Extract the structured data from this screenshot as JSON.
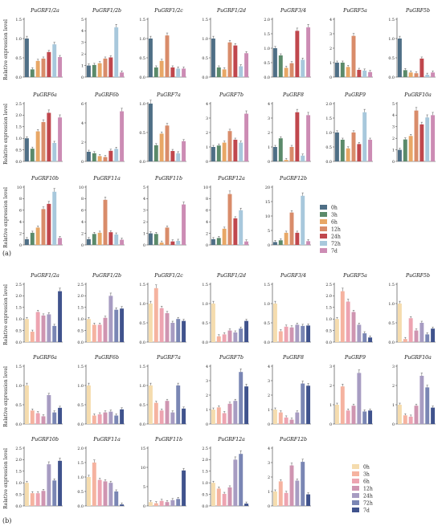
{
  "ylabel": "Relative expression level",
  "panel_labels": [
    "(a)",
    "(b)"
  ],
  "chart_data": [
    {
      "panel": "(a)",
      "type": "bar",
      "categories": [
        "0h",
        "3h",
        "6h",
        "12h",
        "24h",
        "72h",
        "7d"
      ],
      "legend": [
        "0h",
        "3h",
        "6h",
        "12h",
        "24h",
        "72h",
        "7d"
      ],
      "colors": [
        "#4f6f86",
        "#5b8a6a",
        "#e8a766",
        "#d98c6a",
        "#c0474d",
        "#a8c8dc",
        "#cc8cb4"
      ],
      "ylabel": "Relative expression level",
      "rows": [
        [
          {
            "name": "PuGRF1/2a",
            "ymax": 1.5,
            "ticks": [
              "0.0",
              "0.5",
              "1.0",
              "1.5"
            ],
            "values": [
              1.0,
              0.2,
              0.42,
              0.48,
              0.65,
              0.85,
              0.52
            ]
          },
          {
            "name": "PuGRF1/2b",
            "ymax": 5,
            "ticks": [
              "0",
              "1",
              "2",
              "3",
              "4",
              "5"
            ],
            "values": [
              1.0,
              1.05,
              1.2,
              1.6,
              1.7,
              4.3,
              0.4
            ]
          },
          {
            "name": "PuGRF1/2c",
            "ymax": 1.5,
            "ticks": [
              "0.0",
              "0.5",
              "1.0",
              "1.5"
            ],
            "values": [
              1.0,
              0.25,
              0.42,
              1.08,
              0.25,
              0.22,
              0.22
            ]
          },
          {
            "name": "PuGRF1/2d",
            "ymax": 1.5,
            "ticks": [
              "0.0",
              "0.5",
              "1.0",
              "1.5"
            ],
            "values": [
              1.0,
              0.25,
              0.2,
              0.9,
              0.82,
              0.28,
              0.62
            ]
          },
          {
            "name": "PuGRF3/4",
            "ymax": 2.0,
            "ticks": [
              "0.0",
              "0.5",
              "1.0",
              "1.5",
              "2.0"
            ],
            "values": [
              1.0,
              0.75,
              0.32,
              0.48,
              1.6,
              0.6,
              1.72
            ]
          },
          {
            "name": "PuGRF5a",
            "ymax": 4,
            "ticks": [
              "0",
              "1",
              "2",
              "3",
              "4"
            ],
            "values": [
              1.0,
              1.0,
              0.7,
              2.85,
              0.5,
              0.45,
              0.35
            ]
          },
          {
            "name": "PuGRF5b",
            "ymax": 1.5,
            "ticks": [
              "0.0",
              "0.5",
              "1.0",
              "1.5"
            ],
            "values": [
              1.0,
              0.18,
              0.12,
              0.1,
              0.48,
              0.06,
              0.12
            ]
          }
        ],
        [
          {
            "name": "PuGRF6a",
            "ymax": 2.5,
            "ticks": [
              "0.0",
              "0.5",
              "1.0",
              "1.5",
              "2.0",
              "2.5"
            ],
            "values": [
              1.0,
              0.55,
              1.3,
              1.7,
              2.1,
              0.8,
              1.9
            ]
          },
          {
            "name": "PuGRF6b",
            "ymax": 6,
            "ticks": [
              "0",
              "2",
              "4",
              "6"
            ],
            "values": [
              1.0,
              0.85,
              0.55,
              0.45,
              1.1,
              1.3,
              5.2
            ]
          },
          {
            "name": "PuGRF7a",
            "ymax": 1.0,
            "ticks": [
              "0.0",
              "0.5",
              "1.0"
            ],
            "values": [
              1.0,
              0.28,
              0.48,
              0.62,
              0.18,
              0.14,
              0.35
            ]
          },
          {
            "name": "PuGRF7b",
            "ymax": 4,
            "ticks": [
              "0",
              "1",
              "2",
              "3",
              "4"
            ],
            "values": [
              1.0,
              1.1,
              1.3,
              2.1,
              1.5,
              1.3,
              3.3
            ]
          },
          {
            "name": "PuGRF8",
            "ymax": 4,
            "ticks": [
              "0",
              "1",
              "2",
              "3",
              "4"
            ],
            "values": [
              1.0,
              1.6,
              0.1,
              1.0,
              3.4,
              0.4,
              3.2
            ]
          },
          {
            "name": "PuGRF9",
            "ymax": 2.0,
            "ticks": [
              "0.0",
              "0.5",
              "1.0",
              "1.5",
              "2.0"
            ],
            "values": [
              1.0,
              0.75,
              0.45,
              1.0,
              0.6,
              1.7,
              0.75
            ]
          },
          {
            "name": "PuGRF10a",
            "ymax": 5,
            "ticks": [
              "0",
              "1",
              "2",
              "3",
              "4",
              "5"
            ],
            "values": [
              1.0,
              1.9,
              2.2,
              4.4,
              3.2,
              3.8,
              4.0
            ]
          }
        ],
        [
          {
            "name": "PuGRF10b",
            "ymax": 10,
            "ticks": [
              "0",
              "2",
              "4",
              "6",
              "8",
              "10"
            ],
            "values": [
              1.0,
              2.1,
              3.0,
              6.2,
              7.1,
              9.2,
              1.2
            ]
          },
          {
            "name": "PuGRF11a",
            "ymax": 10,
            "ticks": [
              "0",
              "2",
              "4",
              "6",
              "8",
              "10"
            ],
            "values": [
              1.0,
              1.9,
              2.1,
              7.8,
              2.2,
              1.8,
              0.9
            ]
          },
          {
            "name": "PuGRF11b",
            "ymax": 5,
            "ticks": [
              "0",
              "1",
              "2",
              "3",
              "4",
              "5"
            ],
            "values": [
              1.0,
              0.95,
              0.2,
              1.5,
              0.3,
              0.35,
              3.5
            ]
          },
          {
            "name": "PuGRF12a",
            "ymax": 10,
            "ticks": [
              "0",
              "2",
              "4",
              "6",
              "8",
              "10"
            ],
            "values": [
              1.0,
              1.2,
              2.8,
              8.8,
              4.6,
              6.0,
              0.6
            ]
          },
          {
            "name": "PuGRF12b",
            "ymax": 20,
            "ticks": [
              "0",
              "5",
              "10",
              "15",
              "20"
            ],
            "values": [
              1.0,
              1.6,
              4.2,
              11.2,
              4.2,
              17.0,
              1.3
            ]
          }
        ]
      ]
    },
    {
      "panel": "(b)",
      "type": "bar",
      "categories": [
        "0h",
        "3h",
        "6h",
        "12h",
        "24h",
        "72h",
        "7d"
      ],
      "legend": [
        "0h",
        "3h",
        "6h",
        "12h",
        "24h",
        "72h",
        "7d"
      ],
      "colors": [
        "#f5dcae",
        "#f5b3a0",
        "#eda4b1",
        "#cf95b1",
        "#a79cc2",
        "#7a86b4",
        "#40538d"
      ],
      "ylabel": "Relative expression level",
      "rows": [
        [
          {
            "name": "PuGRF1/2a",
            "ymax": 2.5,
            "ticks": [
              "0.0",
              "0.5",
              "1.0",
              "1.5",
              "2.0",
              "2.5"
            ],
            "values": [
              1.0,
              0.45,
              1.3,
              1.15,
              1.2,
              0.7,
              2.2
            ]
          },
          {
            "name": "PuGRF1/2b",
            "ymax": 2.5,
            "ticks": [
              "0.0",
              "0.5",
              "1.0",
              "1.5",
              "2.0",
              "2.5"
            ],
            "values": [
              1.0,
              0.75,
              0.75,
              1.05,
              2.0,
              1.4,
              1.45
            ]
          },
          {
            "name": "PuGRF1/2c",
            "ymax": 1.5,
            "ticks": [
              "0.0",
              "0.5",
              "1.0",
              "1.5"
            ],
            "values": [
              1.0,
              1.4,
              0.88,
              0.75,
              0.5,
              0.6,
              0.55
            ]
          },
          {
            "name": "PuGRF1/2d",
            "ymax": 1.5,
            "ticks": [
              "0.0",
              "0.5",
              "1.0",
              "1.5"
            ],
            "values": [
              1.0,
              0.15,
              0.2,
              0.3,
              0.25,
              0.35,
              0.55
            ]
          },
          {
            "name": "PuGRF3/4",
            "ymax": 1.5,
            "ticks": [
              "0.0",
              "0.5",
              "1.0",
              "1.5"
            ],
            "values": [
              1.0,
              0.28,
              0.4,
              0.38,
              0.45,
              0.42,
              0.43
            ]
          },
          {
            "name": "PuGRF5a",
            "ymax": 2.5,
            "ticks": [
              "0.0",
              "0.5",
              "1.0",
              "1.5",
              "2.0",
              "2.5"
            ],
            "values": [
              1.0,
              2.2,
              1.75,
              1.3,
              0.75,
              0.38,
              0.2
            ]
          },
          {
            "name": "PuGRF5b",
            "ymax": 1.5,
            "ticks": [
              "0.0",
              "0.5",
              "1.0",
              "1.5"
            ],
            "values": [
              1.0,
              0.08,
              0.62,
              0.3,
              0.5,
              0.2,
              0.35
            ]
          }
        ],
        [
          {
            "name": "PuGRF6a",
            "ymax": 1.5,
            "ticks": [
              "0.0",
              "0.5",
              "1.0",
              "1.5"
            ],
            "values": [
              1.0,
              0.35,
              0.28,
              0.2,
              0.75,
              0.3,
              0.42
            ]
          },
          {
            "name": "PuGRF6b",
            "ymax": 1.5,
            "ticks": [
              "0.0",
              "0.5",
              "1.0",
              "1.5"
            ],
            "values": [
              1.0,
              0.22,
              0.25,
              0.3,
              0.32,
              0.22,
              0.38
            ]
          },
          {
            "name": "PuGRF7a",
            "ymax": 1.5,
            "ticks": [
              "0.0",
              "0.5",
              "1.0",
              "1.5"
            ],
            "values": [
              1.0,
              0.55,
              0.35,
              0.6,
              0.3,
              1.0,
              0.4
            ]
          },
          {
            "name": "PuGRF7b",
            "ymax": 4,
            "ticks": [
              "0",
              "1",
              "2",
              "3",
              "4"
            ],
            "values": [
              1.0,
              1.15,
              0.75,
              1.4,
              1.6,
              3.6,
              2.6
            ]
          },
          {
            "name": "PuGRF8",
            "ymax": 4,
            "ticks": [
              "0",
              "1",
              "2",
              "3",
              "4"
            ],
            "values": [
              1.0,
              0.8,
              0.45,
              0.3,
              0.8,
              2.8,
              2.65
            ]
          },
          {
            "name": "PuGRF9",
            "ymax": 3,
            "ticks": [
              "0",
              "1",
              "2",
              "3"
            ],
            "values": [
              1.0,
              1.95,
              0.7,
              0.95,
              2.65,
              0.65,
              0.7
            ]
          },
          {
            "name": "PuGRF10a",
            "ymax": 3,
            "ticks": [
              "0",
              "1",
              "2",
              "3"
            ],
            "values": [
              1.0,
              0.45,
              0.38,
              0.95,
              2.5,
              1.9,
              0.85
            ]
          }
        ],
        [
          {
            "name": "PuGRF10b",
            "ymax": 2.5,
            "ticks": [
              "0.0",
              "0.5",
              "1.0",
              "1.5",
              "2.0",
              "2.5"
            ],
            "values": [
              1.0,
              0.55,
              0.55,
              0.65,
              1.8,
              1.1,
              1.95
            ]
          },
          {
            "name": "PuGRF11a",
            "ymax": 2.0,
            "ticks": [
              "0.0",
              "0.5",
              "1.0",
              "1.5",
              "2.0"
            ],
            "values": [
              1.0,
              1.5,
              0.9,
              0.85,
              0.8,
              0.5,
              0.05
            ]
          },
          {
            "name": "PuGRF11b",
            "ymax": 15,
            "ticks": [
              "0",
              "5",
              "10",
              "15"
            ],
            "values": [
              1.0,
              0.7,
              1.3,
              1.0,
              1.5,
              1.8,
              9.2
            ]
          },
          {
            "name": "PuGRF12a",
            "ymax": 2.5,
            "ticks": [
              "0.0",
              "0.5",
              "1.0",
              "1.5",
              "2.0",
              "2.5"
            ],
            "values": [
              1.0,
              0.75,
              0.52,
              0.8,
              2.0,
              2.25,
              0.1
            ]
          },
          {
            "name": "PuGRF12b",
            "ymax": 4,
            "ticks": [
              "0",
              "1",
              "2",
              "3",
              "4"
            ],
            "values": [
              1.0,
              1.7,
              0.9,
              2.8,
              1.75,
              3.05,
              0.8
            ]
          }
        ]
      ]
    }
  ]
}
